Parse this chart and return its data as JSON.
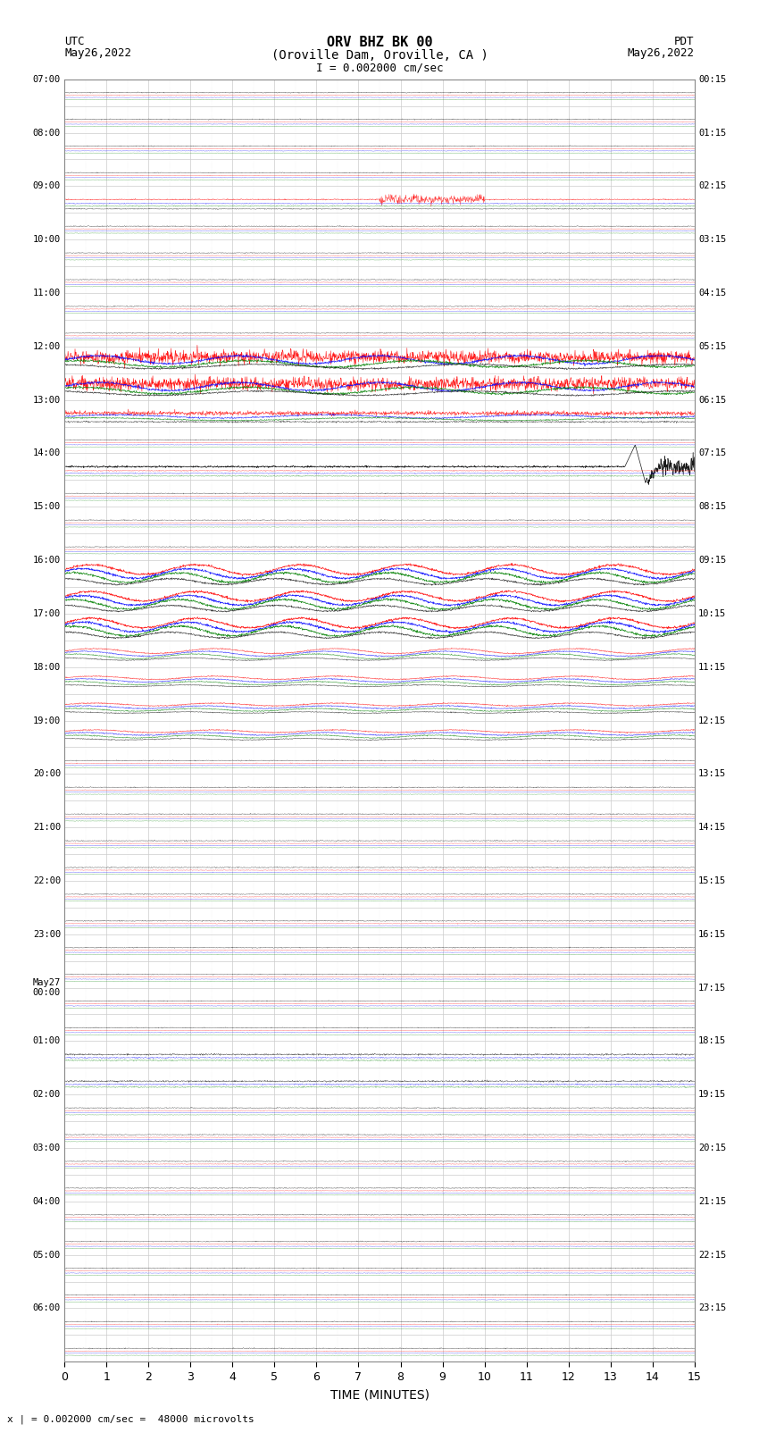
{
  "title_line1": "ORV BHZ BK 00",
  "title_line2": "(Oroville Dam, Oroville, CA )",
  "scale_label": "I = 0.002000 cm/sec",
  "label_left": "UTC\nMay26,2022",
  "label_right": "PDT\nMay26,2022",
  "footer": "x | = 0.002000 cm/sec =  48000 microvolts",
  "xlabel": "TIME (MINUTES)",
  "bg_color": "#ffffff",
  "grid_color": "#cccccc",
  "trace_colors": [
    "black",
    "red",
    "blue",
    "green"
  ],
  "left_labels_utc": [
    "07:00",
    "",
    "08:00",
    "",
    "09:00",
    "",
    "10:00",
    "",
    "11:00",
    "",
    "12:00",
    "",
    "13:00",
    "",
    "14:00",
    "",
    "15:00",
    "",
    "16:00",
    "",
    "17:00",
    "",
    "18:00",
    "",
    "19:00",
    "",
    "20:00",
    "",
    "21:00",
    "",
    "22:00",
    "",
    "23:00",
    "",
    "May27\n00:00",
    "",
    "01:00",
    "",
    "02:00",
    "",
    "03:00",
    "",
    "04:00",
    "",
    "05:00",
    "",
    "06:00",
    ""
  ],
  "right_labels_pdt": [
    "00:15",
    "",
    "01:15",
    "",
    "02:15",
    "",
    "03:15",
    "",
    "04:15",
    "",
    "05:15",
    "",
    "06:15",
    "",
    "07:15",
    "",
    "08:15",
    "",
    "09:15",
    "",
    "10:15",
    "",
    "11:15",
    "",
    "12:15",
    "",
    "13:15",
    "",
    "14:15",
    "",
    "15:15",
    "",
    "16:15",
    "",
    "17:15",
    "",
    "18:15",
    "",
    "19:15",
    "",
    "20:15",
    "",
    "21:15",
    "",
    "22:15",
    "",
    "23:15",
    ""
  ],
  "n_rows": 48,
  "n_minutes": 15,
  "figsize": [
    8.5,
    16.13
  ],
  "dpi": 100
}
